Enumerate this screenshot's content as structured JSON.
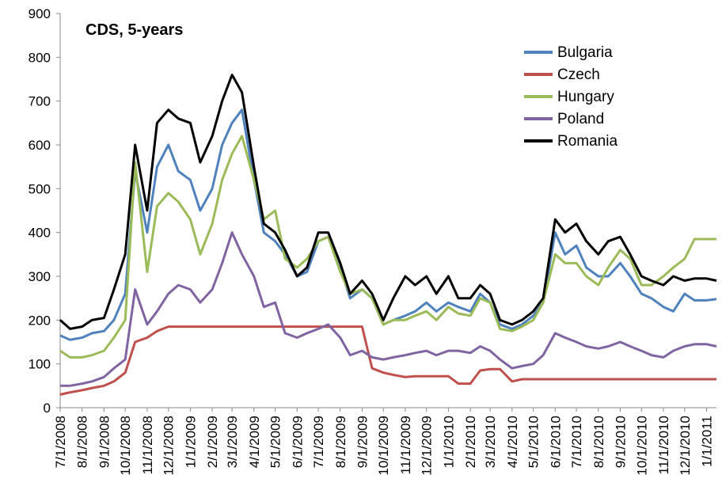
{
  "chart_data": {
    "type": "line",
    "title": "CDS, 5-years",
    "x": [
      "2008-07-01",
      "2008-07-15",
      "2008-08-01",
      "2008-08-15",
      "2008-09-01",
      "2008-09-15",
      "2008-10-01",
      "2008-10-15",
      "2008-11-01",
      "2008-11-15",
      "2008-12-01",
      "2008-12-15",
      "2009-01-01",
      "2009-01-15",
      "2009-02-01",
      "2009-02-15",
      "2009-03-01",
      "2009-03-15",
      "2009-04-01",
      "2009-04-15",
      "2009-05-01",
      "2009-05-15",
      "2009-06-01",
      "2009-06-15",
      "2009-07-01",
      "2009-07-15",
      "2009-08-01",
      "2009-08-15",
      "2009-09-01",
      "2009-09-15",
      "2009-10-01",
      "2009-10-15",
      "2009-11-01",
      "2009-11-15",
      "2009-12-01",
      "2009-12-15",
      "2010-01-01",
      "2010-01-15",
      "2010-02-01",
      "2010-02-15",
      "2010-03-01",
      "2010-03-15",
      "2010-04-01",
      "2010-04-15",
      "2010-05-01",
      "2010-05-15",
      "2010-06-01",
      "2010-06-15",
      "2010-07-01",
      "2010-07-15",
      "2010-08-01",
      "2010-08-15",
      "2010-09-01",
      "2010-09-15",
      "2010-10-01",
      "2010-10-15",
      "2010-11-01",
      "2010-11-15",
      "2010-12-01",
      "2010-12-15",
      "2011-01-01",
      "2011-01-15"
    ],
    "series": [
      {
        "name": "Bulgaria",
        "color": "#4f81bd",
        "values": [
          165,
          155,
          160,
          170,
          175,
          200,
          260,
          540,
          400,
          550,
          600,
          540,
          520,
          450,
          500,
          600,
          650,
          680,
          520,
          400,
          380,
          350,
          300,
          310,
          380,
          390,
          320,
          250,
          270,
          250,
          190,
          200,
          210,
          220,
          240,
          220,
          240,
          230,
          220,
          260,
          240,
          190,
          180,
          190,
          210,
          240,
          400,
          350,
          370,
          320,
          300,
          300,
          330,
          300,
          260,
          250,
          230,
          220,
          260,
          245,
          245,
          248
        ]
      },
      {
        "name": "Czech",
        "color": "#c0504d",
        "values": [
          30,
          35,
          40,
          45,
          50,
          60,
          80,
          150,
          160,
          175,
          185,
          185,
          185,
          185,
          185,
          185,
          185,
          185,
          185,
          185,
          185,
          185,
          185,
          185,
          185,
          185,
          185,
          185,
          185,
          90,
          80,
          75,
          70,
          72,
          72,
          72,
          72,
          55,
          55,
          85,
          88,
          88,
          60,
          65,
          65,
          65,
          65,
          65,
          65,
          65,
          65,
          65,
          65,
          65,
          65,
          65,
          65,
          65,
          65,
          65,
          65,
          65
        ]
      },
      {
        "name": "Hungary",
        "color": "#9bbb59",
        "values": [
          130,
          115,
          115,
          120,
          130,
          160,
          200,
          560,
          310,
          460,
          490,
          470,
          430,
          350,
          420,
          520,
          580,
          620,
          520,
          430,
          450,
          340,
          320,
          340,
          380,
          390,
          310,
          260,
          270,
          250,
          190,
          200,
          200,
          210,
          220,
          200,
          230,
          215,
          210,
          250,
          240,
          180,
          175,
          185,
          200,
          240,
          350,
          330,
          330,
          300,
          280,
          320,
          360,
          340,
          280,
          280,
          300,
          320,
          340,
          385,
          385,
          385
        ]
      },
      {
        "name": "Poland",
        "color": "#8064a2",
        "values": [
          50,
          50,
          55,
          60,
          70,
          90,
          110,
          270,
          190,
          220,
          260,
          280,
          270,
          240,
          270,
          330,
          400,
          350,
          300,
          230,
          240,
          170,
          160,
          170,
          180,
          190,
          160,
          120,
          130,
          115,
          110,
          115,
          120,
          125,
          130,
          120,
          130,
          130,
          125,
          140,
          130,
          110,
          90,
          95,
          100,
          120,
          170,
          160,
          150,
          140,
          135,
          140,
          150,
          140,
          130,
          120,
          115,
          130,
          140,
          145,
          145,
          140
        ]
      },
      {
        "name": "Romania",
        "color": "#000000",
        "values": [
          200,
          180,
          185,
          200,
          205,
          270,
          350,
          600,
          450,
          650,
          680,
          660,
          650,
          560,
          620,
          700,
          760,
          720,
          550,
          420,
          400,
          360,
          300,
          320,
          400,
          400,
          330,
          260,
          290,
          260,
          200,
          250,
          300,
          280,
          300,
          260,
          300,
          250,
          250,
          280,
          260,
          200,
          190,
          200,
          220,
          250,
          430,
          400,
          420,
          380,
          350,
          380,
          390,
          350,
          300,
          290,
          280,
          300,
          290,
          295,
          295,
          290
        ]
      }
    ],
    "xlim": [
      "2008-07-01",
      "2011-01-15"
    ],
    "xticks": [
      {
        "value": "2008-07-01",
        "label": "7/1/2008"
      },
      {
        "value": "2008-08-01",
        "label": "8/1/2008"
      },
      {
        "value": "2008-09-01",
        "label": "9/1/2008"
      },
      {
        "value": "2008-10-01",
        "label": "10/1/2008"
      },
      {
        "value": "2008-11-01",
        "label": "11/1/2008"
      },
      {
        "value": "2008-12-01",
        "label": "12/1/2008"
      },
      {
        "value": "2009-01-01",
        "label": "1/1/2009"
      },
      {
        "value": "2009-02-01",
        "label": "2/1/2009"
      },
      {
        "value": "2009-03-01",
        "label": "3/1/2009"
      },
      {
        "value": "2009-04-01",
        "label": "4/1/2009"
      },
      {
        "value": "2009-05-01",
        "label": "5/1/2009"
      },
      {
        "value": "2009-06-01",
        "label": "6/1/2009"
      },
      {
        "value": "2009-07-01",
        "label": "7/1/2009"
      },
      {
        "value": "2009-08-01",
        "label": "8/1/2009"
      },
      {
        "value": "2009-09-01",
        "label": "9/1/2009"
      },
      {
        "value": "2009-10-01",
        "label": "10/1/2009"
      },
      {
        "value": "2009-11-01",
        "label": "11/1/2009"
      },
      {
        "value": "2009-12-01",
        "label": "12/1/2009"
      },
      {
        "value": "2010-01-01",
        "label": "1/1/2010"
      },
      {
        "value": "2010-02-01",
        "label": "2/1/2010"
      },
      {
        "value": "2010-03-01",
        "label": "3/1/2010"
      },
      {
        "value": "2010-04-01",
        "label": "4/1/2010"
      },
      {
        "value": "2010-05-01",
        "label": "5/1/2010"
      },
      {
        "value": "2010-06-01",
        "label": "6/1/2010"
      },
      {
        "value": "2010-07-01",
        "label": "7/1/2010"
      },
      {
        "value": "2010-08-01",
        "label": "8/1/2010"
      },
      {
        "value": "2010-09-01",
        "label": "9/1/2010"
      },
      {
        "value": "2010-10-01",
        "label": "10/1/2010"
      },
      {
        "value": "2010-11-01",
        "label": "11/1/2010"
      },
      {
        "value": "2010-12-01",
        "label": "12/1/2010"
      },
      {
        "value": "2011-01-01",
        "label": "1/1/2011"
      }
    ],
    "ylim": [
      0,
      900
    ],
    "yticks": [
      0,
      100,
      200,
      300,
      400,
      500,
      600,
      700,
      800,
      900
    ],
    "legend": "upper right"
  }
}
